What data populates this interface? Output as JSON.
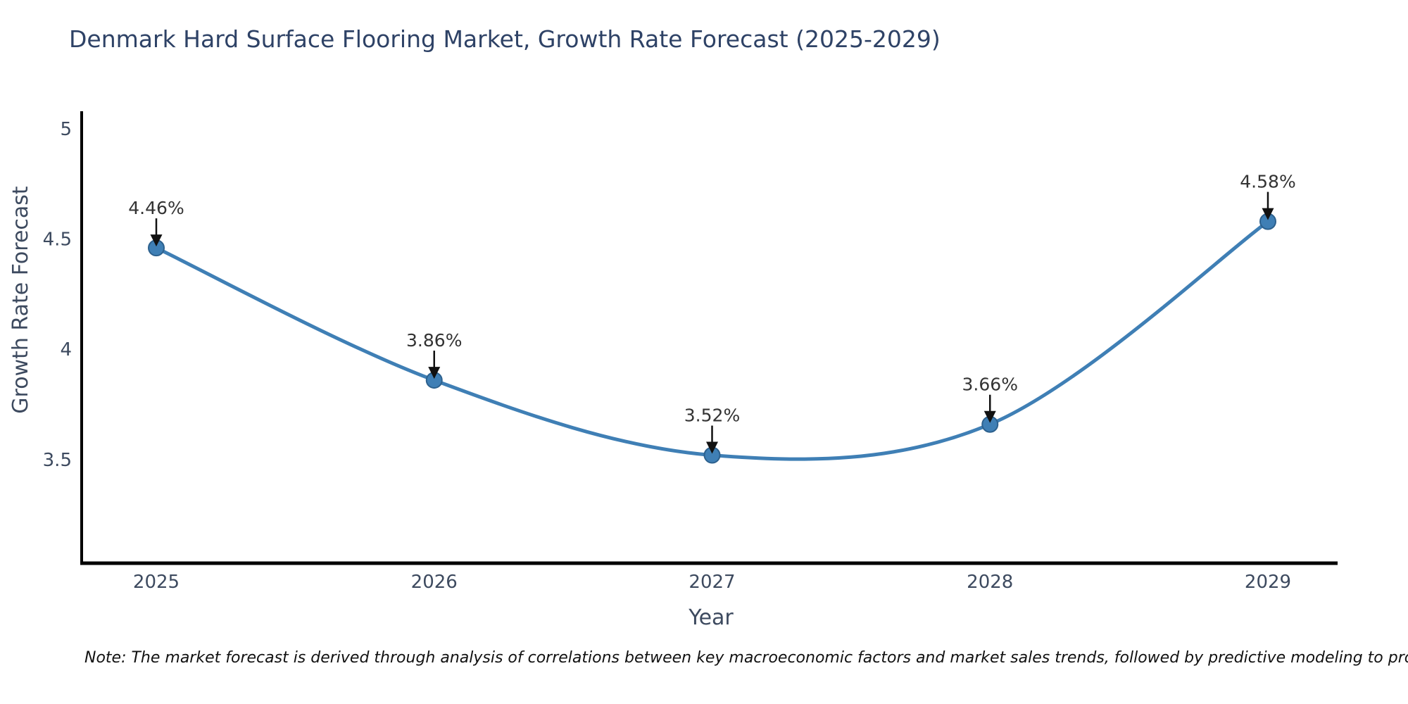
{
  "chart_data": {
    "type": "line",
    "title": "Denmark Hard Surface Flooring Market, Growth Rate Forecast (2025-2029)",
    "xlabel": "Year",
    "ylabel": "Growth Rate Forecast",
    "categories": [
      "2025",
      "2026",
      "2027",
      "2028",
      "2029"
    ],
    "series": [
      {
        "name": "Growth Rate Forecast",
        "values": [
          4.46,
          3.86,
          3.52,
          3.66,
          4.58
        ]
      }
    ],
    "point_labels": [
      "4.46%",
      "3.86%",
      "3.52%",
      "3.66%",
      "4.58%"
    ],
    "yticks": [
      5,
      4.5,
      4,
      3.5
    ],
    "ytick_labels": [
      "5",
      "4.5",
      "4",
      "3.5"
    ],
    "ylim": [
      3.03,
      5.08
    ],
    "grid": false,
    "legend": "none",
    "line_style": "spline",
    "markers": true,
    "annotations_have_arrows": true,
    "colors": {
      "line": "#3f7fb5",
      "marker_fill": "#3f7fb5",
      "marker_edge": "#2d618e",
      "arrow": "#111111",
      "annotation_text": "#333333",
      "axis_line": "#000000",
      "tick_text": "#3d4a5f",
      "title_text": "#2e4266"
    }
  },
  "note": "Note: The market forecast is derived through analysis of correlations between key macroeconomic factors and market sales trends, followed by predictive modeling to project future sales"
}
